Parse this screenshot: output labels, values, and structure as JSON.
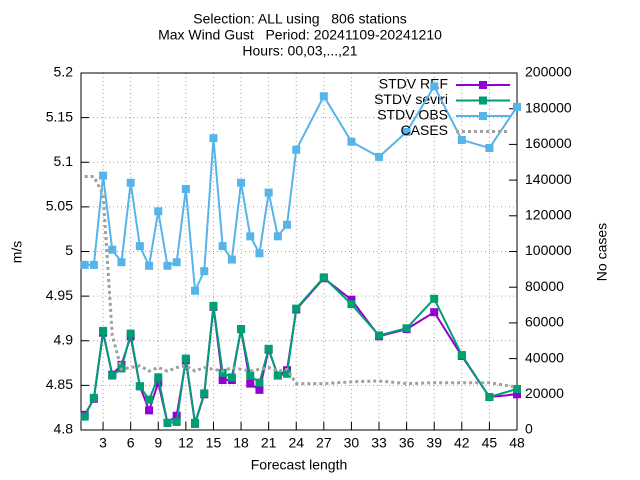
{
  "chart_data": {
    "type": "line",
    "title": [
      "Selection: ALL using   806 stations",
      "Max Wind Gust   Period: 20241109-20241210",
      "Hours: 00,03,...,21"
    ],
    "x_label": "Forecast length",
    "y_label": "m/s",
    "y2_label": "No cases",
    "x": [
      1,
      2,
      3,
      4,
      5,
      6,
      7,
      8,
      9,
      10,
      11,
      12,
      13,
      14,
      15,
      16,
      17,
      18,
      19,
      20,
      21,
      22,
      23,
      24,
      27,
      30,
      33,
      36,
      39,
      42,
      45,
      48
    ],
    "xlim": [
      0.6,
      48
    ],
    "xticks": [
      3,
      6,
      9,
      12,
      15,
      18,
      21,
      24,
      27,
      30,
      33,
      36,
      39,
      42,
      45,
      48
    ],
    "ylim": [
      4.8,
      5.2
    ],
    "yticks": [
      4.8,
      4.85,
      4.9,
      4.95,
      5,
      5.05,
      5.1,
      5.15,
      5.2
    ],
    "y2lim": [
      0,
      200000
    ],
    "y2ticks": [
      0,
      20000,
      40000,
      60000,
      80000,
      100000,
      120000,
      140000,
      160000,
      180000,
      200000
    ],
    "grid": true,
    "legend": "top-right",
    "series": [
      {
        "name": "STDV REF",
        "color": "#9400d3",
        "marker": "square",
        "values": [
          4.817,
          4.835,
          4.909,
          4.862,
          4.873,
          4.905,
          4.849,
          4.822,
          4.853,
          4.808,
          4.816,
          4.878,
          4.807,
          4.84,
          4.938,
          4.856,
          4.856,
          4.913,
          4.852,
          4.845,
          4.89,
          4.861,
          4.867,
          4.935,
          4.97,
          4.946,
          4.905,
          4.913,
          4.932,
          4.883,
          4.837,
          4.84
        ]
      },
      {
        "name": "STDV seviri",
        "color": "#009e73",
        "marker": "square",
        "values": [
          4.815,
          4.836,
          4.911,
          4.861,
          4.869,
          4.908,
          4.849,
          4.834,
          4.859,
          4.808,
          4.809,
          4.88,
          4.808,
          4.841,
          4.939,
          4.864,
          4.859,
          4.913,
          4.861,
          4.853,
          4.891,
          4.861,
          4.863,
          4.936,
          4.971,
          4.941,
          4.906,
          4.914,
          4.947,
          4.884,
          4.837,
          4.846
        ]
      },
      {
        "name": "STDV OBS",
        "color": "#56b4e9",
        "marker": "square",
        "values": [
          4.985,
          4.985,
          5.085,
          5.002,
          4.988,
          5.077,
          5.006,
          4.984,
          5.045,
          4.984,
          4.988,
          5.07,
          4.956,
          4.978,
          5.127,
          5.006,
          4.991,
          5.077,
          5.017,
          4.998,
          5.066,
          5.017,
          5.03,
          5.114,
          5.174,
          5.123,
          5.106,
          5.134,
          5.185,
          5.125,
          5.116,
          5.162
        ]
      },
      {
        "name": "CASES",
        "color": "#a0a0a0",
        "axis": "y2",
        "dashed": true,
        "values": [
          142000,
          142000,
          132000,
          53000,
          34000,
          35000,
          36000,
          33000,
          35000,
          33000,
          35000,
          36000,
          33000,
          35000,
          34000,
          33000,
          35000,
          34000,
          33000,
          34000,
          35000,
          33000,
          34000,
          26000,
          26000,
          27000,
          27500,
          26000,
          26500,
          26500,
          26500,
          24000
        ]
      }
    ]
  }
}
